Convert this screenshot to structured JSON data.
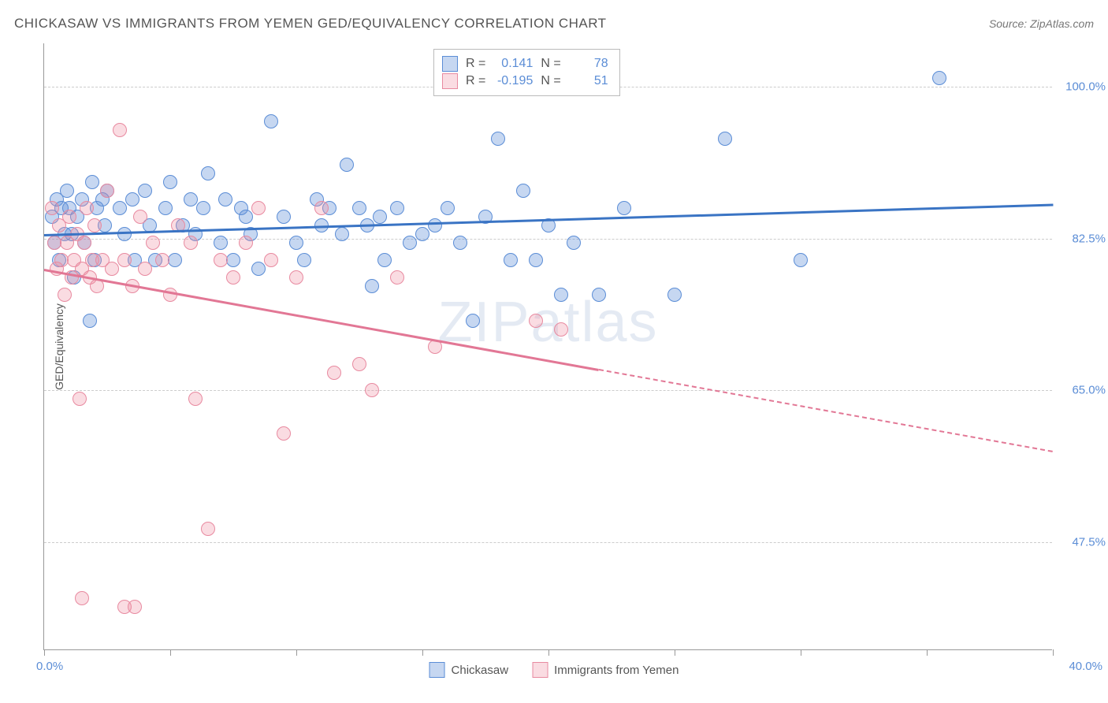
{
  "title": "CHICKASAW VS IMMIGRANTS FROM YEMEN GED/EQUIVALENCY CORRELATION CHART",
  "source": "Source: ZipAtlas.com",
  "watermark": "ZIPatlas",
  "y_axis_label": "GED/Equivalency",
  "chart": {
    "type": "scatter",
    "background_color": "#ffffff",
    "grid_color": "#cccccc",
    "axis_color": "#999999",
    "xlim": [
      0,
      40
    ],
    "ylim": [
      35,
      105
    ],
    "x_ticks": [
      0,
      5,
      10,
      15,
      20,
      25,
      30,
      35,
      40
    ],
    "x_labels": {
      "min": "0.0%",
      "max": "40.0%"
    },
    "y_grid": [
      {
        "value": 47.5,
        "label": "47.5%"
      },
      {
        "value": 65.0,
        "label": "65.0%"
      },
      {
        "value": 82.5,
        "label": "82.5%"
      },
      {
        "value": 100.0,
        "label": "100.0%"
      }
    ],
    "point_radius": 9,
    "point_fill_opacity_a": 0.35,
    "point_fill_opacity_b": 0.3,
    "series": [
      {
        "name": "Chickasaw",
        "color_fill": "rgba(91,141,214,0.35)",
        "color_stroke": "#5b8dd6",
        "trend_color": "#3a74c4",
        "r": "0.141",
        "n": "78",
        "trend": {
          "x1": 0,
          "y1": 83.0,
          "x2": 40,
          "y2": 86.5,
          "solid_until": 40
        },
        "points": [
          [
            0.3,
            85
          ],
          [
            0.4,
            82
          ],
          [
            0.5,
            87
          ],
          [
            0.6,
            80
          ],
          [
            0.7,
            86
          ],
          [
            0.8,
            83
          ],
          [
            0.9,
            88
          ],
          [
            1.0,
            86
          ],
          [
            1.1,
            83
          ],
          [
            1.2,
            78
          ],
          [
            1.3,
            85
          ],
          [
            1.5,
            87
          ],
          [
            1.6,
            82
          ],
          [
            1.8,
            73
          ],
          [
            1.9,
            89
          ],
          [
            2.0,
            80
          ],
          [
            2.1,
            86
          ],
          [
            2.3,
            87
          ],
          [
            2.4,
            84
          ],
          [
            2.5,
            88
          ],
          [
            3.0,
            86
          ],
          [
            3.2,
            83
          ],
          [
            3.5,
            87
          ],
          [
            3.6,
            80
          ],
          [
            4.0,
            88
          ],
          [
            4.2,
            84
          ],
          [
            4.4,
            80
          ],
          [
            4.8,
            86
          ],
          [
            5.0,
            89
          ],
          [
            5.2,
            80
          ],
          [
            5.5,
            84
          ],
          [
            5.8,
            87
          ],
          [
            6.0,
            83
          ],
          [
            6.3,
            86
          ],
          [
            6.5,
            90
          ],
          [
            7.0,
            82
          ],
          [
            7.2,
            87
          ],
          [
            7.5,
            80
          ],
          [
            7.8,
            86
          ],
          [
            8.0,
            85
          ],
          [
            8.2,
            83
          ],
          [
            8.5,
            79
          ],
          [
            9.0,
            96
          ],
          [
            9.5,
            85
          ],
          [
            10.0,
            82
          ],
          [
            10.3,
            80
          ],
          [
            10.8,
            87
          ],
          [
            11.0,
            84
          ],
          [
            11.3,
            86
          ],
          [
            11.8,
            83
          ],
          [
            12.0,
            91
          ],
          [
            12.5,
            86
          ],
          [
            12.8,
            84
          ],
          [
            13.0,
            77
          ],
          [
            13.3,
            85
          ],
          [
            13.5,
            80
          ],
          [
            14.0,
            86
          ],
          [
            14.5,
            82
          ],
          [
            15.0,
            83
          ],
          [
            15.5,
            84
          ],
          [
            16.0,
            86
          ],
          [
            16.5,
            82
          ],
          [
            17.0,
            73
          ],
          [
            17.5,
            85
          ],
          [
            18.0,
            94
          ],
          [
            18.5,
            80
          ],
          [
            19.0,
            88
          ],
          [
            19.5,
            80
          ],
          [
            20.0,
            84
          ],
          [
            20.5,
            76
          ],
          [
            21.0,
            82
          ],
          [
            22.0,
            76
          ],
          [
            23.0,
            86
          ],
          [
            25.0,
            76
          ],
          [
            27.0,
            94
          ],
          [
            30.0,
            80
          ],
          [
            35.5,
            101
          ]
        ]
      },
      {
        "name": "Immigrants from Yemen",
        "color_fill": "rgba(238,140,160,0.30)",
        "color_stroke": "#e88aa0",
        "trend_color": "#e27795",
        "r": "-0.195",
        "n": "51",
        "trend": {
          "x1": 0,
          "y1": 79.0,
          "x2": 40,
          "y2": 58.0,
          "solid_until": 22
        },
        "points": [
          [
            0.3,
            86
          ],
          [
            0.4,
            82
          ],
          [
            0.5,
            79
          ],
          [
            0.6,
            84
          ],
          [
            0.7,
            80
          ],
          [
            0.8,
            76
          ],
          [
            0.9,
            82
          ],
          [
            1.0,
            85
          ],
          [
            1.1,
            78
          ],
          [
            1.2,
            80
          ],
          [
            1.3,
            83
          ],
          [
            1.4,
            64
          ],
          [
            1.5,
            79
          ],
          [
            1.6,
            82
          ],
          [
            1.7,
            86
          ],
          [
            1.8,
            78
          ],
          [
            1.9,
            80
          ],
          [
            2.0,
            84
          ],
          [
            2.1,
            77
          ],
          [
            2.3,
            80
          ],
          [
            2.5,
            88
          ],
          [
            2.7,
            79
          ],
          [
            3.0,
            95
          ],
          [
            3.2,
            80
          ],
          [
            3.5,
            77
          ],
          [
            3.8,
            85
          ],
          [
            4.0,
            79
          ],
          [
            4.3,
            82
          ],
          [
            4.7,
            80
          ],
          [
            5.0,
            76
          ],
          [
            5.3,
            84
          ],
          [
            5.8,
            82
          ],
          [
            6.0,
            64
          ],
          [
            6.5,
            49
          ],
          [
            7.0,
            80
          ],
          [
            7.5,
            78
          ],
          [
            8.0,
            82
          ],
          [
            8.5,
            86
          ],
          [
            9.0,
            80
          ],
          [
            9.5,
            60
          ],
          [
            10.0,
            78
          ],
          [
            11.0,
            86
          ],
          [
            11.5,
            67
          ],
          [
            12.5,
            68
          ],
          [
            13.0,
            65
          ],
          [
            14.0,
            78
          ],
          [
            15.5,
            70
          ],
          [
            19.5,
            73
          ],
          [
            20.5,
            72
          ],
          [
            1.5,
            41
          ],
          [
            3.2,
            40
          ],
          [
            3.6,
            40
          ]
        ]
      }
    ]
  },
  "corr_legend_labels": {
    "r": "R  =",
    "n": "N  ="
  },
  "bottom_legend": {
    "a": "Chickasaw",
    "b": "Immigrants from Yemen"
  }
}
